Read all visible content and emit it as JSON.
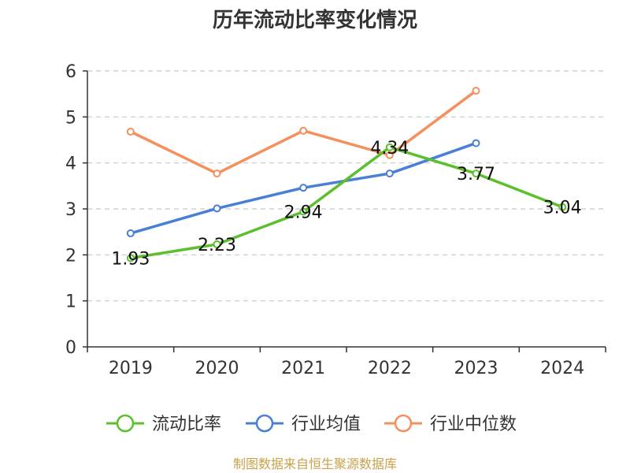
{
  "chart_data": {
    "type": "line",
    "title": "历年流动比率变化情况",
    "categories": [
      "2019",
      "2020",
      "2021",
      "2022",
      "2023",
      "2024"
    ],
    "ylim": [
      0,
      6
    ],
    "yticks": [
      "0",
      "1",
      "2",
      "3",
      "4",
      "5",
      "6"
    ],
    "grid": true,
    "legend_position": "bottom",
    "series": [
      {
        "name": "流动比率",
        "color": "#5cbf2e",
        "values": [
          1.93,
          2.23,
          2.94,
          4.34,
          3.77,
          3.04
        ],
        "labels": [
          "1.93",
          "2.23",
          "2.94",
          "4.34",
          "3.77",
          "3.04"
        ]
      },
      {
        "name": "行业均值",
        "color": "#4a7fd6",
        "values": [
          2.47,
          3.01,
          3.46,
          3.77,
          4.43,
          null
        ]
      },
      {
        "name": "行业中位数",
        "color": "#f58f5c",
        "values": [
          4.68,
          3.77,
          4.7,
          4.17,
          5.57,
          null
        ]
      }
    ],
    "source": "制图数据来自恒生聚源数据库"
  }
}
